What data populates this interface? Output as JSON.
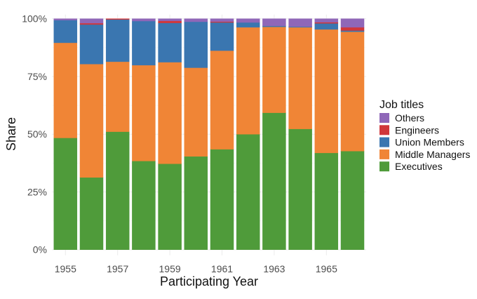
{
  "chart_data": {
    "type": "bar",
    "stacked": true,
    "xlabel": "Participating Year",
    "ylabel": "Share",
    "ylim": [
      0,
      100
    ],
    "y_ticks": [
      "0%",
      "25%",
      "50%",
      "75%",
      "100%"
    ],
    "x_ticks": [
      "1955",
      "1957",
      "1959",
      "1961",
      "1963",
      "1965"
    ],
    "categories": [
      1955,
      1956,
      1957,
      1958,
      1959,
      1960,
      1961,
      1962,
      1963,
      1964,
      1965,
      1966
    ],
    "grid": true,
    "legend": {
      "title": "Job titles",
      "placement": "right"
    },
    "series": [
      {
        "name": "Executives",
        "color": "#4f9b3a",
        "values": [
          48.4,
          31.3,
          51.1,
          38.4,
          37.2,
          40.4,
          43.5,
          50.0,
          59.3,
          52.3,
          41.9,
          42.7
        ]
      },
      {
        "name": "Middle Managers",
        "color": "#f08536",
        "values": [
          41.2,
          49.1,
          30.3,
          41.5,
          44.0,
          38.4,
          42.7,
          46.3,
          37.2,
          44.0,
          53.5,
          51.7
        ]
      },
      {
        "name": "Union Members",
        "color": "#3a76b0",
        "values": [
          9.8,
          17.1,
          18.3,
          19.1,
          17.0,
          19.9,
          12.2,
          2.1,
          0.4,
          0.3,
          2.6,
          0.5
        ]
      },
      {
        "name": "Engineers",
        "color": "#d0373a",
        "values": [
          0,
          0.6,
          0.3,
          0,
          0.9,
          0,
          0.4,
          0,
          0,
          0,
          0.5,
          1.4
        ]
      },
      {
        "name": "Others",
        "color": "#8f67b8",
        "values": [
          0.6,
          1.9,
          0,
          1.0,
          0.9,
          1.3,
          1.2,
          1.6,
          3.1,
          3.4,
          1.5,
          3.7
        ]
      }
    ],
    "legend_order": [
      "Others",
      "Engineers",
      "Union Members",
      "Middle Managers",
      "Executives"
    ]
  }
}
